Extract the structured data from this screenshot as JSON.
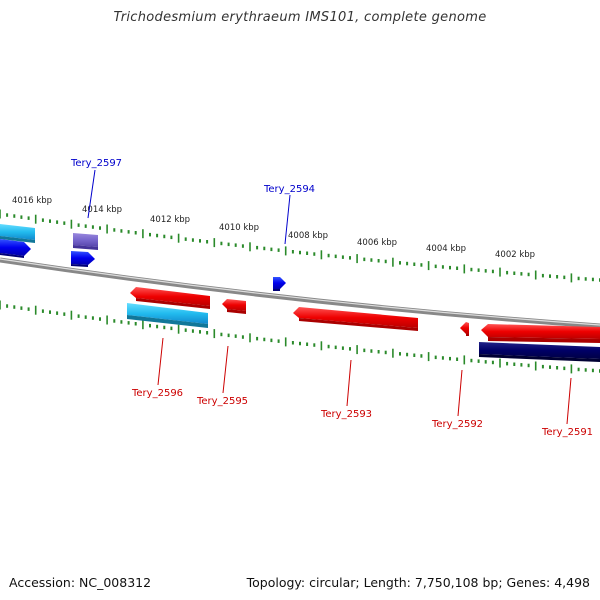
{
  "title": "Trichodesmium erythraeum IMS101, complete genome",
  "accession_text": "Accession: NC_008312",
  "summary_text": "Topology: circular; Length: 7,750,108 bp; Genes: 4,498",
  "scale_labels": [
    "4016 kbp",
    "4014 kbp",
    "4012 kbp",
    "4010 kbp",
    "4008 kbp",
    "4006 kbp",
    "4004 kbp",
    "4002 kbp"
  ],
  "gene_labels": {
    "tery_2597": "Tery_2597",
    "tery_2594": "Tery_2594",
    "tery_2596": "Tery_2596",
    "tery_2595": "Tery_2595",
    "tery_2593": "Tery_2593",
    "tery_2592": "Tery_2592",
    "tery_2591": "Tery_2591"
  },
  "colors": {
    "forward_label": "#0000cc",
    "reverse_label": "#cc0000",
    "tick": "#2a8a2a",
    "backbone": "#888888",
    "cds_forward": "#0000ee",
    "cds_reverse": "#ee0000",
    "cyan_feature": "#22bbee",
    "navy_feature": "#000066",
    "purple_feature": "#7766cc"
  }
}
